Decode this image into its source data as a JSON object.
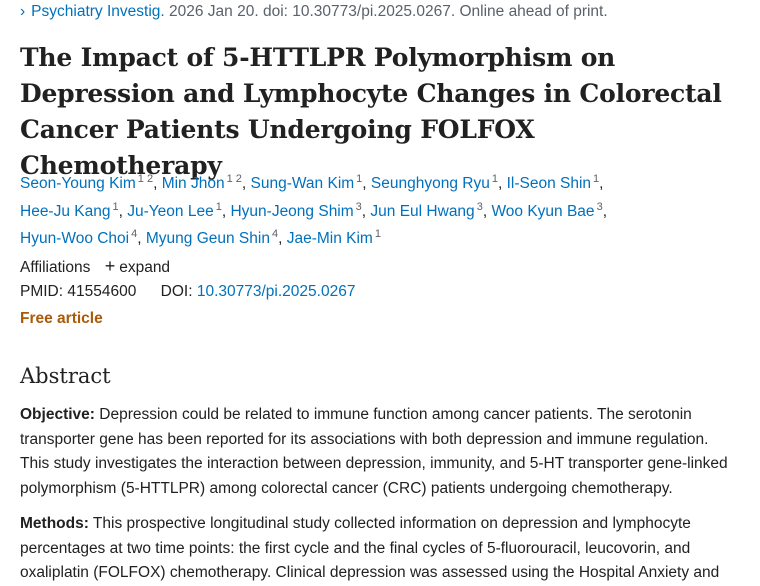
{
  "citation": {
    "chevron": "›",
    "journal": "Psychiatry Investig.",
    "rest": " 2026 Jan 20. doi: 10.30773/pi.2025.0267. Online ahead of print."
  },
  "title": "The Impact of 5-HTTLPR Polymorphism on Depression and Lymphocyte Changes in Colorectal Cancer Patients Undergoing FOLFOX Chemotherapy",
  "authors": [
    {
      "name": "Seon-Young Kim",
      "aff": "1 2"
    },
    {
      "name": "Min Jhon",
      "aff": "1 2"
    },
    {
      "name": "Sung-Wan Kim",
      "aff": "1"
    },
    {
      "name": "Seunghyong Ryu",
      "aff": "1"
    },
    {
      "name": "Il-Seon Shin",
      "aff": "1"
    },
    {
      "name": "Hee-Ju Kang",
      "aff": "1"
    },
    {
      "name": "Ju-Yeon Lee",
      "aff": "1"
    },
    {
      "name": "Hyun-Jeong Shim",
      "aff": "3"
    },
    {
      "name": "Jun Eul Hwang",
      "aff": "3"
    },
    {
      "name": "Woo Kyun Bae",
      "aff": "3"
    },
    {
      "name": "Hyun-Woo Choi",
      "aff": "4"
    },
    {
      "name": "Myung Geun Shin",
      "aff": "4"
    },
    {
      "name": "Jae-Min Kim",
      "aff": "1"
    }
  ],
  "affiliations": {
    "label": "Affiliations",
    "plus": "+",
    "expand": "expand"
  },
  "ids": {
    "pmid_label": "PMID:",
    "pmid": "41554600",
    "doi_label": "DOI:",
    "doi": "10.30773/pi.2025.0267"
  },
  "free_article": "Free article",
  "abstract": {
    "heading": "Abstract",
    "objective_label": "Objective:",
    "objective": "Depression could be related to immune function among cancer patients. The serotonin transporter gene has been reported for its associations with both depression and immune regulation. This study investigates the interaction between depression, immunity, and 5-HT transporter gene-linked polymorphism (5-HTTLPR) among colorectal cancer (CRC) patients undergoing chemotherapy.",
    "methods_label": "Methods:",
    "methods": "This prospective longitudinal study collected information on depression and lymphocyte percentages at two time points: the first cycle and the final cycles of 5-fluorouracil, leucovorin, and oxaliplatin (FOLFOX) chemotherapy. Clinical depression was assessed using the Hospital Anxiety and"
  },
  "colors": {
    "link": "#0071bc",
    "text": "#212121",
    "muted": "#5b616b",
    "free": "#aa5a09"
  }
}
